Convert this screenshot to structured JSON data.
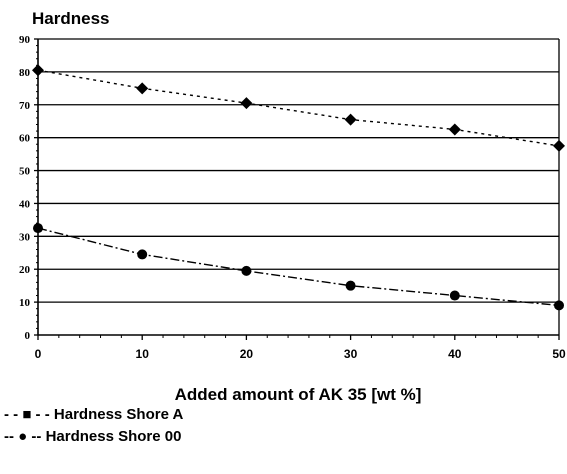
{
  "chart_data": {
    "type": "line",
    "title": "",
    "ylabel": "Hardness",
    "xlabel": "Added amount of AK 35 [wt %]",
    "x": [
      0,
      10,
      20,
      30,
      40,
      50
    ],
    "xticks": [
      "0",
      "10",
      "20",
      "30",
      "40",
      "50"
    ],
    "yticks": [
      "0",
      "10",
      "20",
      "30",
      "40",
      "50",
      "60",
      "70",
      "80",
      "90"
    ],
    "xlim": [
      0,
      50
    ],
    "ylim": [
      0,
      90
    ],
    "grid": "horizontal",
    "legend_position": "bottom-left",
    "series": [
      {
        "name": "Hardness Shore A",
        "marker": "diamond",
        "line_style": "dotted",
        "values": [
          80.5,
          75,
          70.5,
          65.5,
          62.5,
          57.5
        ]
      },
      {
        "name": "Hardness Shore 00",
        "marker": "circle",
        "line_style": "dash-dot",
        "values": [
          32.5,
          24.5,
          19.5,
          15,
          12,
          9
        ]
      }
    ]
  },
  "legend": {
    "items": [
      {
        "glyph": "- - ■ - -",
        "label": "Hardness Shore A"
      },
      {
        "glyph": "-- ● --",
        "label": "Hardness Shore 00"
      }
    ]
  }
}
